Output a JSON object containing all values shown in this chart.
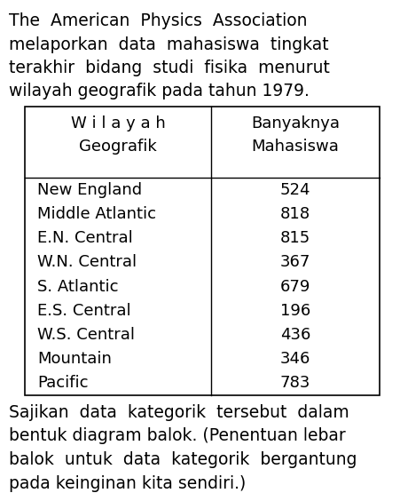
{
  "title_lines": [
    "The  American  Physics  Association",
    "melaporkan  data  mahasiswa  tingkat",
    "terakhir  bidang  studi  fisika  menurut",
    "wilayah geografik pada tahun 1979."
  ],
  "footer_lines": [
    "Sajikan  data  kategorik  tersebut  dalam",
    "bentuk diagram balok. (Penentuan lebar",
    "balok  untuk  data  kategorik  bergantung",
    "pada keinginan kita sendiri.)"
  ],
  "col_header_left": "W i l a y a h\nGeografik",
  "col_header_right": "Banyaknya\nMahasiswa",
  "categories": [
    "New England",
    "Middle Atlantic",
    "E.N. Central",
    "W.N. Central",
    "S. Atlantic",
    "E.S. Central",
    "W.S. Central",
    "Mountain",
    "Pacific"
  ],
  "values": [
    524,
    818,
    815,
    367,
    679,
    196,
    436,
    346,
    783
  ],
  "bg_color": "#ffffff",
  "text_color": "#000000",
  "font_family": "DejaVu Sans",
  "title_fontsize": 13.5,
  "table_fontsize": 13.0,
  "footer_fontsize": 13.5,
  "fig_width": 4.51,
  "fig_height": 5.55,
  "dpi": 100
}
